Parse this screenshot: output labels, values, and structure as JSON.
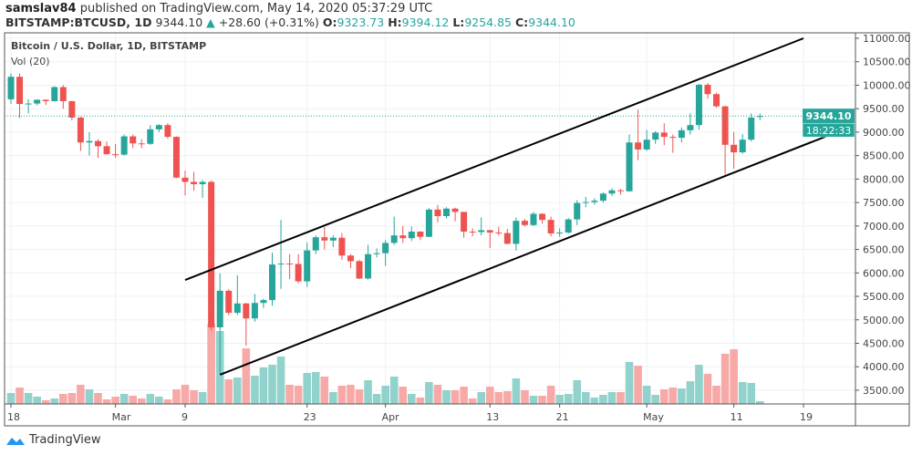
{
  "header": {
    "author": "samslav84",
    "published_text": "published on TradingView.com, May 14, 2020 05:37:29 UTC",
    "symbol": "BITSTAMP:BTCUSD, 1D",
    "last": "9344.10",
    "change": "+28.60 (+0.31%)",
    "o_label": "O:",
    "o": "9323.73",
    "h_label": "H:",
    "h": "9394.12",
    "l_label": "L:",
    "l": "9254.85",
    "c_label": "C:",
    "c": "9344.10"
  },
  "legend": {
    "title": "Bitcoin / U.S. Dollar, 1D, BITSTAMP",
    "volume": "Vol (20)"
  },
  "price_label": "9344.10",
  "countdown_label": "18:22:33",
  "footer": {
    "logo_text": "TradingView"
  },
  "colors": {
    "up": "#26a69a",
    "down": "#ef5350",
    "up_vol": "#92d2cc",
    "down_vol": "#f7a9a7",
    "trendline": "#000000",
    "grid": "#eef0f3"
  },
  "chart_data": {
    "type": "candlestick",
    "title": "Bitcoin / U.S. Dollar, 1D, BITSTAMP",
    "ylim": [
      3200,
      11250
    ],
    "y_ticks": [
      "11000.00",
      "10500.00",
      "10000.00",
      "9500.00",
      "9000.00",
      "8500.00",
      "8000.00",
      "7500.00",
      "7000.00",
      "6500.00",
      "6000.00",
      "5500.00",
      "5000.00",
      "4500.00",
      "4000.00",
      "3500.00"
    ],
    "x_ticks": [
      {
        "label": "18",
        "date": "2020-02-18"
      },
      {
        "label": "Mar",
        "date": "2020-03-01"
      },
      {
        "label": "9",
        "date": "2020-03-09"
      },
      {
        "label": "23",
        "date": "2020-03-23"
      },
      {
        "label": "Apr",
        "date": "2020-04-01"
      },
      {
        "label": "13",
        "date": "2020-04-13"
      },
      {
        "label": "21",
        "date": "2020-04-21"
      },
      {
        "label": "May",
        "date": "2020-05-01"
      },
      {
        "label": "11",
        "date": "2020-05-11"
      },
      {
        "label": "19",
        "date": "2020-05-19"
      }
    ],
    "grid": true,
    "last_price_line": 9344.1,
    "trendlines": [
      {
        "from": {
          "date": "2020-03-09",
          "price": 5850
        },
        "to": {
          "date": "2020-05-19",
          "price": 11000
        }
      },
      {
        "from": {
          "date": "2020-03-13",
          "price": 3830
        },
        "to": {
          "date": "2020-05-22",
          "price": 8940
        }
      }
    ],
    "volume_relative": true,
    "candles": [
      {
        "d": "2020-02-18",
        "o": 9700,
        "h": 10250,
        "l": 9600,
        "c": 10180,
        "v": 12
      },
      {
        "d": "2020-02-19",
        "o": 10180,
        "h": 10250,
        "l": 9300,
        "c": 9600,
        "v": 18
      },
      {
        "d": "2020-02-20",
        "o": 9600,
        "h": 9700,
        "l": 9400,
        "c": 9610,
        "v": 12
      },
      {
        "d": "2020-02-21",
        "o": 9610,
        "h": 9700,
        "l": 9570,
        "c": 9690,
        "v": 8
      },
      {
        "d": "2020-02-22",
        "o": 9690,
        "h": 9700,
        "l": 9580,
        "c": 9660,
        "v": 4
      },
      {
        "d": "2020-02-23",
        "o": 9660,
        "h": 9980,
        "l": 9650,
        "c": 9960,
        "v": 6
      },
      {
        "d": "2020-02-24",
        "o": 9960,
        "h": 10000,
        "l": 9500,
        "c": 9660,
        "v": 11
      },
      {
        "d": "2020-02-25",
        "o": 9660,
        "h": 9670,
        "l": 9250,
        "c": 9310,
        "v": 12
      },
      {
        "d": "2020-02-26",
        "o": 9310,
        "h": 9330,
        "l": 8600,
        "c": 8780,
        "v": 21
      },
      {
        "d": "2020-02-27",
        "o": 8780,
        "h": 9000,
        "l": 8500,
        "c": 8810,
        "v": 16
      },
      {
        "d": "2020-02-28",
        "o": 8810,
        "h": 8850,
        "l": 8450,
        "c": 8700,
        "v": 12
      },
      {
        "d": "2020-02-29",
        "o": 8700,
        "h": 8800,
        "l": 8520,
        "c": 8530,
        "v": 5
      },
      {
        "d": "2020-03-01",
        "o": 8530,
        "h": 8750,
        "l": 8450,
        "c": 8520,
        "v": 8
      },
      {
        "d": "2020-03-02",
        "o": 8520,
        "h": 8950,
        "l": 8500,
        "c": 8910,
        "v": 11
      },
      {
        "d": "2020-03-03",
        "o": 8910,
        "h": 8950,
        "l": 8660,
        "c": 8760,
        "v": 9
      },
      {
        "d": "2020-03-04",
        "o": 8760,
        "h": 8850,
        "l": 8660,
        "c": 8750,
        "v": 6
      },
      {
        "d": "2020-03-05",
        "o": 8750,
        "h": 9150,
        "l": 8730,
        "c": 9060,
        "v": 11
      },
      {
        "d": "2020-03-06",
        "o": 9060,
        "h": 9170,
        "l": 9000,
        "c": 9150,
        "v": 8
      },
      {
        "d": "2020-03-07",
        "o": 9150,
        "h": 9190,
        "l": 8860,
        "c": 8900,
        "v": 5
      },
      {
        "d": "2020-03-08",
        "o": 8900,
        "h": 8910,
        "l": 8020,
        "c": 8030,
        "v": 16
      },
      {
        "d": "2020-03-09",
        "o": 8030,
        "h": 8180,
        "l": 7650,
        "c": 7940,
        "v": 21
      },
      {
        "d": "2020-03-10",
        "o": 7940,
        "h": 8150,
        "l": 7750,
        "c": 7890,
        "v": 15
      },
      {
        "d": "2020-03-11",
        "o": 7890,
        "h": 7980,
        "l": 7600,
        "c": 7940,
        "v": 13
      },
      {
        "d": "2020-03-12",
        "o": 7940,
        "h": 7970,
        "l": 4770,
        "c": 4840,
        "v": 88
      },
      {
        "d": "2020-03-13",
        "o": 4840,
        "h": 5990,
        "l": 3850,
        "c": 5620,
        "v": 80
      },
      {
        "d": "2020-03-14",
        "o": 5620,
        "h": 5650,
        "l": 5100,
        "c": 5150,
        "v": 27
      },
      {
        "d": "2020-03-15",
        "o": 5150,
        "h": 5950,
        "l": 5100,
        "c": 5350,
        "v": 29
      },
      {
        "d": "2020-03-16",
        "o": 5350,
        "h": 5360,
        "l": 4450,
        "c": 5030,
        "v": 61
      },
      {
        "d": "2020-03-17",
        "o": 5030,
        "h": 5550,
        "l": 4960,
        "c": 5360,
        "v": 31
      },
      {
        "d": "2020-03-18",
        "o": 5360,
        "h": 5450,
        "l": 5250,
        "c": 5420,
        "v": 40
      },
      {
        "d": "2020-03-19",
        "o": 5420,
        "h": 6430,
        "l": 5300,
        "c": 6180,
        "v": 43
      },
      {
        "d": "2020-03-20",
        "o": 6180,
        "h": 7130,
        "l": 5660,
        "c": 6200,
        "v": 52
      },
      {
        "d": "2020-03-21",
        "o": 6200,
        "h": 6400,
        "l": 5870,
        "c": 6190,
        "v": 21
      },
      {
        "d": "2020-03-22",
        "o": 6190,
        "h": 6400,
        "l": 5780,
        "c": 5820,
        "v": 20
      },
      {
        "d": "2020-03-23",
        "o": 5820,
        "h": 6650,
        "l": 5700,
        "c": 6480,
        "v": 34
      },
      {
        "d": "2020-03-24",
        "o": 6480,
        "h": 6800,
        "l": 6400,
        "c": 6760,
        "v": 35
      },
      {
        "d": "2020-03-25",
        "o": 6760,
        "h": 6980,
        "l": 6500,
        "c": 6690,
        "v": 30
      },
      {
        "d": "2020-03-26",
        "o": 6690,
        "h": 6800,
        "l": 6550,
        "c": 6750,
        "v": 13
      },
      {
        "d": "2020-03-27",
        "o": 6750,
        "h": 6850,
        "l": 6280,
        "c": 6370,
        "v": 20
      },
      {
        "d": "2020-03-28",
        "o": 6370,
        "h": 6400,
        "l": 6100,
        "c": 6250,
        "v": 21
      },
      {
        "d": "2020-03-29",
        "o": 6250,
        "h": 6280,
        "l": 5870,
        "c": 5880,
        "v": 16
      },
      {
        "d": "2020-03-30",
        "o": 5880,
        "h": 6600,
        "l": 5860,
        "c": 6400,
        "v": 26
      },
      {
        "d": "2020-03-31",
        "o": 6400,
        "h": 6520,
        "l": 6330,
        "c": 6420,
        "v": 11
      },
      {
        "d": "2020-04-01",
        "o": 6420,
        "h": 6700,
        "l": 6150,
        "c": 6640,
        "v": 20
      },
      {
        "d": "2020-04-02",
        "o": 6640,
        "h": 7200,
        "l": 6600,
        "c": 6800,
        "v": 30
      },
      {
        "d": "2020-04-03",
        "o": 6800,
        "h": 7000,
        "l": 6640,
        "c": 6740,
        "v": 19
      },
      {
        "d": "2020-04-04",
        "o": 6740,
        "h": 6990,
        "l": 6680,
        "c": 6880,
        "v": 11
      },
      {
        "d": "2020-04-05",
        "o": 6880,
        "h": 6890,
        "l": 6700,
        "c": 6770,
        "v": 7
      },
      {
        "d": "2020-04-06",
        "o": 6770,
        "h": 7380,
        "l": 6760,
        "c": 7350,
        "v": 24
      },
      {
        "d": "2020-04-07",
        "o": 7350,
        "h": 7450,
        "l": 7080,
        "c": 7210,
        "v": 21
      },
      {
        "d": "2020-04-08",
        "o": 7210,
        "h": 7400,
        "l": 7160,
        "c": 7370,
        "v": 15
      },
      {
        "d": "2020-04-09",
        "o": 7370,
        "h": 7390,
        "l": 7100,
        "c": 7300,
        "v": 15
      },
      {
        "d": "2020-04-10",
        "o": 7300,
        "h": 7300,
        "l": 6750,
        "c": 6880,
        "v": 19
      },
      {
        "d": "2020-04-11",
        "o": 6880,
        "h": 6950,
        "l": 6780,
        "c": 6870,
        "v": 6
      },
      {
        "d": "2020-04-12",
        "o": 6870,
        "h": 7180,
        "l": 6800,
        "c": 6910,
        "v": 13
      },
      {
        "d": "2020-04-13",
        "o": 6910,
        "h": 6920,
        "l": 6530,
        "c": 6860,
        "v": 19
      },
      {
        "d": "2020-04-14",
        "o": 6860,
        "h": 6980,
        "l": 6800,
        "c": 6850,
        "v": 13
      },
      {
        "d": "2020-04-15",
        "o": 6850,
        "h": 6940,
        "l": 6610,
        "c": 6620,
        "v": 14
      },
      {
        "d": "2020-04-16",
        "o": 6620,
        "h": 7180,
        "l": 6480,
        "c": 7110,
        "v": 28
      },
      {
        "d": "2020-04-17",
        "o": 7110,
        "h": 7150,
        "l": 6990,
        "c": 7020,
        "v": 15
      },
      {
        "d": "2020-04-18",
        "o": 7020,
        "h": 7300,
        "l": 7000,
        "c": 7260,
        "v": 9
      },
      {
        "d": "2020-04-19",
        "o": 7260,
        "h": 7270,
        "l": 7050,
        "c": 7130,
        "v": 9
      },
      {
        "d": "2020-04-20",
        "o": 7130,
        "h": 7200,
        "l": 6780,
        "c": 6840,
        "v": 20
      },
      {
        "d": "2020-04-21",
        "o": 6840,
        "h": 6950,
        "l": 6770,
        "c": 6860,
        "v": 10
      },
      {
        "d": "2020-04-22",
        "o": 6860,
        "h": 7170,
        "l": 6840,
        "c": 7140,
        "v": 11
      },
      {
        "d": "2020-04-23",
        "o": 7140,
        "h": 7550,
        "l": 7020,
        "c": 7490,
        "v": 26
      },
      {
        "d": "2020-04-24",
        "o": 7490,
        "h": 7620,
        "l": 7400,
        "c": 7510,
        "v": 13
      },
      {
        "d": "2020-04-25",
        "o": 7510,
        "h": 7590,
        "l": 7460,
        "c": 7540,
        "v": 7
      },
      {
        "d": "2020-04-26",
        "o": 7540,
        "h": 7720,
        "l": 7500,
        "c": 7690,
        "v": 10
      },
      {
        "d": "2020-04-27",
        "o": 7690,
        "h": 7800,
        "l": 7640,
        "c": 7760,
        "v": 13
      },
      {
        "d": "2020-04-28",
        "o": 7760,
        "h": 7790,
        "l": 7670,
        "c": 7740,
        "v": 13
      },
      {
        "d": "2020-04-29",
        "o": 7740,
        "h": 8950,
        "l": 7730,
        "c": 8780,
        "v": 46
      },
      {
        "d": "2020-04-30",
        "o": 8780,
        "h": 9480,
        "l": 8400,
        "c": 8630,
        "v": 42
      },
      {
        "d": "2020-05-01",
        "o": 8630,
        "h": 9050,
        "l": 8600,
        "c": 8840,
        "v": 20
      },
      {
        "d": "2020-05-02",
        "o": 8840,
        "h": 9020,
        "l": 8750,
        "c": 8990,
        "v": 10
      },
      {
        "d": "2020-05-03",
        "o": 8990,
        "h": 9190,
        "l": 8720,
        "c": 8900,
        "v": 16
      },
      {
        "d": "2020-05-04",
        "o": 8900,
        "h": 8950,
        "l": 8560,
        "c": 8880,
        "v": 18
      },
      {
        "d": "2020-05-05",
        "o": 8880,
        "h": 9100,
        "l": 8780,
        "c": 9040,
        "v": 17
      },
      {
        "d": "2020-05-06",
        "o": 9040,
        "h": 9400,
        "l": 8950,
        "c": 9150,
        "v": 25
      },
      {
        "d": "2020-05-07",
        "o": 9150,
        "h": 10030,
        "l": 9050,
        "c": 10010,
        "v": 43
      },
      {
        "d": "2020-05-08",
        "o": 10010,
        "h": 10050,
        "l": 9710,
        "c": 9810,
        "v": 33
      },
      {
        "d": "2020-05-09",
        "o": 9810,
        "h": 9840,
        "l": 9520,
        "c": 9550,
        "v": 20
      },
      {
        "d": "2020-05-10",
        "o": 9550,
        "h": 9560,
        "l": 8090,
        "c": 8730,
        "v": 55
      },
      {
        "d": "2020-05-11",
        "o": 8730,
        "h": 9000,
        "l": 8220,
        "c": 8570,
        "v": 60
      },
      {
        "d": "2020-05-12",
        "o": 8570,
        "h": 8960,
        "l": 8540,
        "c": 8840,
        "v": 24
      },
      {
        "d": "2020-05-13",
        "o": 8840,
        "h": 9400,
        "l": 8800,
        "c": 9310,
        "v": 23
      },
      {
        "d": "2020-05-14",
        "o": 9323.73,
        "h": 9394.12,
        "l": 9254.85,
        "c": 9344.1,
        "v": 3
      }
    ]
  }
}
